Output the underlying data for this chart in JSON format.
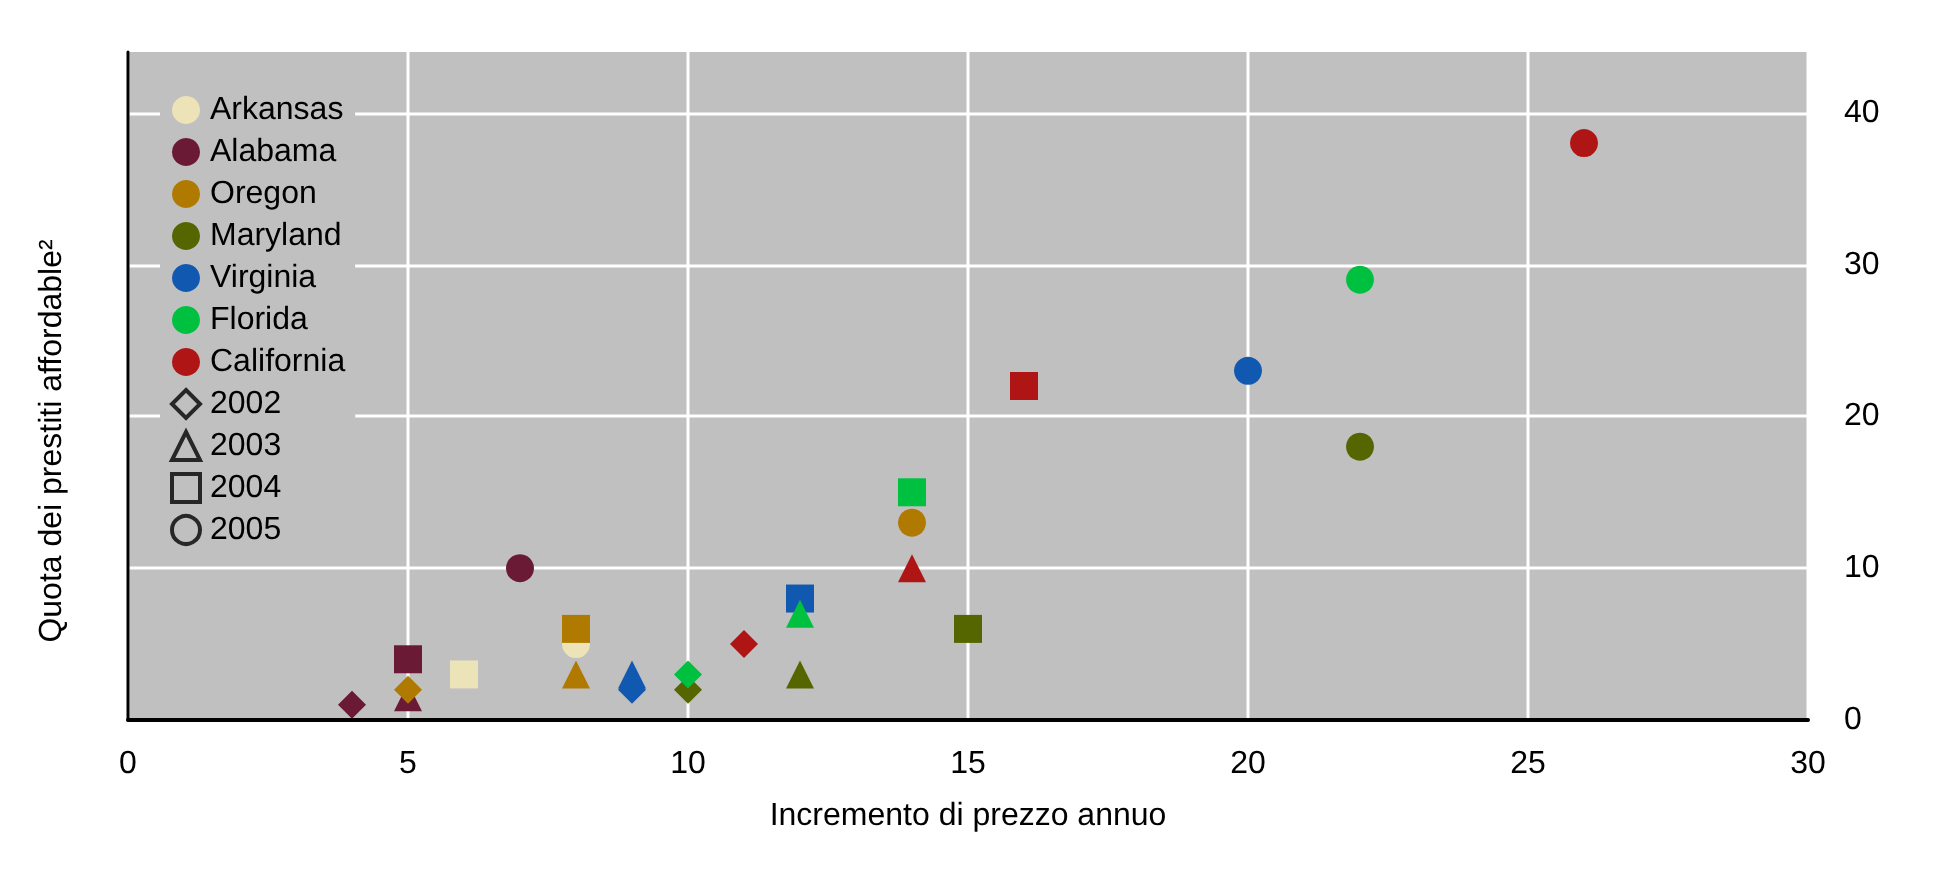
{
  "chart_data": {
    "type": "scatter",
    "xlabel": "Incremento di prezzo annuo",
    "ylabel": "Quota dei prestiti affordable²",
    "xlim": [
      0,
      30
    ],
    "xticks": [
      0,
      5,
      10,
      15,
      20,
      25,
      30
    ],
    "ylim": [
      0,
      44
    ],
    "yticks": [
      0,
      10,
      20,
      30,
      40
    ],
    "grid": true,
    "legend": "top left",
    "series": [
      {
        "name": "Arkansas",
        "color": "#ede3b8",
        "marker": "circle"
      },
      {
        "name": "Alabama",
        "color": "#6b1a35",
        "marker": "circle"
      },
      {
        "name": "Oregon",
        "color": "#b07a00",
        "marker": "circle"
      },
      {
        "name": "Maryland",
        "color": "#556600",
        "marker": "circle"
      },
      {
        "name": "Virginia",
        "color": "#1158b0",
        "marker": "circle"
      },
      {
        "name": "Florida",
        "color": "#00c040",
        "marker": "circle"
      },
      {
        "name": "California",
        "color": "#b01515",
        "marker": "circle"
      },
      {
        "name": "2002",
        "color": "#000000",
        "marker": "diamond"
      },
      {
        "name": "2003",
        "color": "#000000",
        "marker": "triangle"
      },
      {
        "name": "2004",
        "color": "#000000",
        "marker": "square"
      },
      {
        "name": "2005",
        "color": "#000000",
        "marker": "circle"
      },
      {
        "color": "#ede3b8",
        "marker": "square",
        "x": [
          6
        ],
        "values": [
          3
        ]
      },
      {
        "color": "#ede3b8",
        "marker": "circle",
        "x": [
          8
        ],
        "values": [
          5
        ]
      },
      {
        "color": "#6b1a35",
        "marker": "diamond",
        "x": [
          4
        ],
        "values": [
          1
        ]
      },
      {
        "color": "#6b1a35",
        "marker": "triangle",
        "x": [
          5
        ],
        "values": [
          1.5
        ]
      },
      {
        "color": "#6b1a35",
        "marker": "square",
        "x": [
          5
        ],
        "values": [
          4
        ]
      },
      {
        "color": "#6b1a35",
        "marker": "circle",
        "x": [
          7
        ],
        "values": [
          10
        ]
      },
      {
        "color": "#b07a00",
        "marker": "diamond",
        "x": [
          5
        ],
        "values": [
          2
        ]
      },
      {
        "color": "#b07a00",
        "marker": "triangle",
        "x": [
          8
        ],
        "values": [
          3
        ]
      },
      {
        "color": "#b07a00",
        "marker": "square",
        "x": [
          8
        ],
        "values": [
          6
        ]
      },
      {
        "color": "#b07a00",
        "marker": "circle",
        "x": [
          14
        ],
        "values": [
          13
        ]
      },
      {
        "color": "#556600",
        "marker": "diamond",
        "x": [
          10
        ],
        "values": [
          2
        ]
      },
      {
        "color": "#556600",
        "marker": "triangle",
        "x": [
          12
        ],
        "values": [
          3
        ]
      },
      {
        "color": "#556600",
        "marker": "square",
        "x": [
          15
        ],
        "values": [
          6
        ]
      },
      {
        "color": "#556600",
        "marker": "circle",
        "x": [
          22
        ],
        "values": [
          18
        ]
      },
      {
        "color": "#1158b0",
        "marker": "diamond",
        "x": [
          9
        ],
        "values": [
          2
        ]
      },
      {
        "color": "#1158b0",
        "marker": "triangle",
        "x": [
          9
        ],
        "values": [
          3
        ]
      },
      {
        "color": "#1158b0",
        "marker": "square",
        "x": [
          12
        ],
        "values": [
          8
        ]
      },
      {
        "color": "#1158b0",
        "marker": "circle",
        "x": [
          20
        ],
        "values": [
          23
        ]
      },
      {
        "color": "#00c040",
        "marker": "diamond",
        "x": [
          10
        ],
        "values": [
          3
        ]
      },
      {
        "color": "#00c040",
        "marker": "triangle",
        "x": [
          12
        ],
        "values": [
          7
        ]
      },
      {
        "color": "#00c040",
        "marker": "square",
        "x": [
          14
        ],
        "values": [
          15
        ]
      },
      {
        "color": "#00c040",
        "marker": "circle",
        "x": [
          22
        ],
        "values": [
          29
        ]
      },
      {
        "color": "#b01515",
        "marker": "diamond",
        "x": [
          11
        ],
        "values": [
          5
        ]
      },
      {
        "color": "#b01515",
        "marker": "triangle",
        "x": [
          14
        ],
        "values": [
          10
        ]
      },
      {
        "color": "#b01515",
        "marker": "square",
        "x": [
          16
        ],
        "values": [
          22
        ]
      },
      {
        "color": "#b01515",
        "marker": "circle",
        "x": [
          26
        ],
        "values": [
          38
        ]
      }
    ]
  }
}
